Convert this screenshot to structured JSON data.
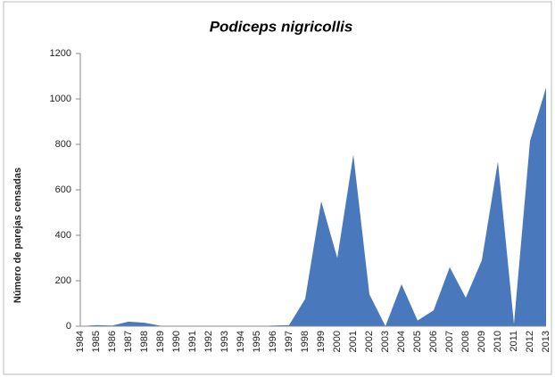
{
  "chart_data": {
    "type": "area",
    "title": "Podiceps nigricollis",
    "y_label": "Número de parejas censadas",
    "categories": [
      "1984",
      "1985",
      "1986",
      "1987",
      "1988",
      "1989",
      "1990",
      "1991",
      "1992",
      "1993",
      "1994",
      "1995",
      "1996",
      "1997",
      "1998",
      "1999",
      "2000",
      "2001",
      "2002",
      "2003",
      "2004",
      "2005",
      "2006",
      "2007",
      "2008",
      "2009",
      "2010",
      "2011",
      "2012",
      "2013"
    ],
    "values": [
      0,
      5,
      3,
      20,
      15,
      2,
      0,
      0,
      0,
      0,
      0,
      0,
      3,
      5,
      120,
      550,
      300,
      755,
      140,
      0,
      185,
      25,
      70,
      260,
      125,
      290,
      725,
      10,
      815,
      1050
    ],
    "color": "#4a78bd",
    "ylim": [
      0,
      1200
    ],
    "yticks": [
      0,
      200,
      400,
      600,
      800,
      1000,
      1200
    ],
    "grid": false
  }
}
